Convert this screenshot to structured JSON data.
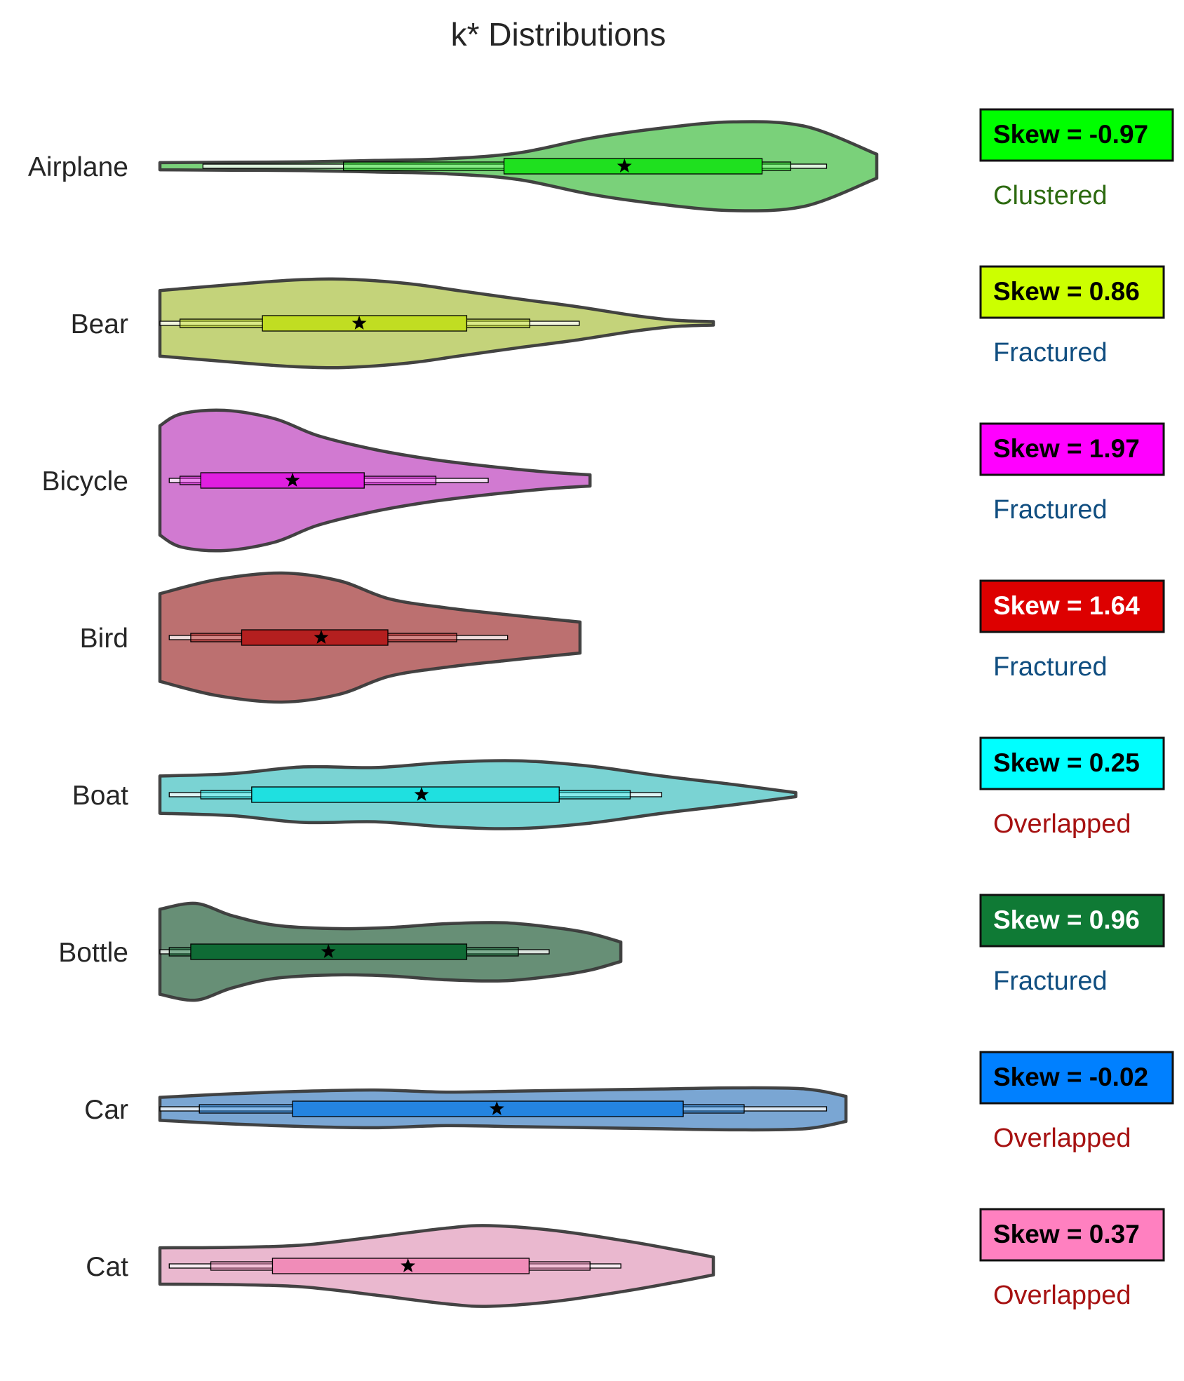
{
  "chart_data": {
    "type": "violin",
    "title": "k* Distributions",
    "xlabel": "",
    "ylabel": "",
    "grid": false,
    "legend": "none",
    "categories": [
      "Airplane",
      "Bear",
      "Bicycle",
      "Bird",
      "Boat",
      "Bottle",
      "Car",
      "Cat"
    ],
    "series": [
      {
        "category": "Airplane",
        "color": "#1fe01f",
        "violin_color": "#7ad17a",
        "range": [
          0,
          1.0
        ],
        "half_width": 0.55,
        "density": [
          [
            0,
            0.08
          ],
          [
            0.1,
            0.09
          ],
          [
            0.2,
            0.1
          ],
          [
            0.3,
            0.13
          ],
          [
            0.4,
            0.17
          ],
          [
            0.5,
            0.3
          ],
          [
            0.6,
            0.63
          ],
          [
            0.7,
            0.86
          ],
          [
            0.8,
            1.0
          ],
          [
            0.9,
            0.9
          ],
          [
            1.0,
            0.27
          ]
        ],
        "whisker": [
          0.06,
          0.93
        ],
        "box": [
          0.48,
          0.84
        ],
        "inner": [
          0.256,
          0.88
        ],
        "mean": 0.648,
        "skew_label": "Skew = -0.97",
        "skew_bg": "#00ff00",
        "skew_text_color": "#000000",
        "classification": "Clustered",
        "class_color": "#2d6a10"
      },
      {
        "category": "Bear",
        "color": "#c1dd22",
        "violin_color": "#c4d37a",
        "range": [
          0,
          0.772
        ],
        "half_width": 0.55,
        "density": [
          [
            0,
            0.74
          ],
          [
            0.06,
            0.82
          ],
          [
            0.12,
            0.9
          ],
          [
            0.18,
            0.97
          ],
          [
            0.24,
            1.0
          ],
          [
            0.3,
            0.96
          ],
          [
            0.36,
            0.87
          ],
          [
            0.42,
            0.73
          ],
          [
            0.5,
            0.55
          ],
          [
            0.58,
            0.38
          ],
          [
            0.66,
            0.18
          ],
          [
            0.72,
            0.07
          ],
          [
            0.772,
            0.04
          ]
        ],
        "whisker": [
          0,
          0.585
        ],
        "box": [
          0.143,
          0.428
        ],
        "inner": [
          0.028,
          0.516
        ],
        "mean": 0.278,
        "skew_label": "Skew = 0.86",
        "skew_bg": "#ccff00",
        "skew_text_color": "#000000",
        "classification": "Fractured",
        "class_color": "#104e80"
      },
      {
        "category": "Bicycle",
        "color": "#e01fe0",
        "violin_color": "#d17ad1",
        "range": [
          0,
          0.6
        ],
        "half_width": 0.87,
        "density": [
          [
            0,
            0.78
          ],
          [
            0.03,
            0.95
          ],
          [
            0.09,
            1.0
          ],
          [
            0.16,
            0.88
          ],
          [
            0.22,
            0.64
          ],
          [
            0.3,
            0.44
          ],
          [
            0.38,
            0.3
          ],
          [
            0.46,
            0.2
          ],
          [
            0.54,
            0.12
          ],
          [
            0.6,
            0.08
          ]
        ],
        "whisker": [
          0.013,
          0.458
        ],
        "box": [
          0.057,
          0.285
        ],
        "inner": [
          0.028,
          0.385
        ],
        "mean": 0.185,
        "skew_label": "Skew = 1.97",
        "skew_bg": "#ff00ff",
        "skew_text_color": "#000000",
        "classification": "Fractured",
        "class_color": "#104e80"
      },
      {
        "category": "Bird",
        "color": "#b41f1f",
        "violin_color": "#bc7070",
        "range": [
          0,
          0.586
        ],
        "half_width": 0.8,
        "density": [
          [
            0,
            0.68
          ],
          [
            0.08,
            0.9
          ],
          [
            0.17,
            1.0
          ],
          [
            0.25,
            0.88
          ],
          [
            0.32,
            0.6
          ],
          [
            0.4,
            0.46
          ],
          [
            0.48,
            0.36
          ],
          [
            0.55,
            0.28
          ],
          [
            0.586,
            0.24
          ]
        ],
        "whisker": [
          0.013,
          0.485
        ],
        "box": [
          0.114,
          0.318
        ],
        "inner": [
          0.043,
          0.414
        ],
        "mean": 0.225,
        "skew_label": "Skew = 1.64",
        "skew_bg": "#dd0000",
        "skew_text_color": "#ffffff",
        "classification": "Fractured",
        "class_color": "#104e80"
      },
      {
        "category": "Boat",
        "color": "#1fe0e0",
        "violin_color": "#7ad3d3",
        "range": [
          0,
          0.887
        ],
        "half_width": 0.42,
        "density": [
          [
            0,
            0.55
          ],
          [
            0.1,
            0.62
          ],
          [
            0.2,
            0.82
          ],
          [
            0.3,
            0.8
          ],
          [
            0.4,
            0.95
          ],
          [
            0.5,
            1.0
          ],
          [
            0.6,
            0.84
          ],
          [
            0.7,
            0.55
          ],
          [
            0.8,
            0.3
          ],
          [
            0.887,
            0.06
          ]
        ],
        "whisker": [
          0.013,
          0.7
        ],
        "box": [
          0.128,
          0.557
        ],
        "inner": [
          0.057,
          0.656
        ],
        "mean": 0.365,
        "skew_label": "Skew = 0.25",
        "skew_bg": "#00ffff",
        "skew_text_color": "#000000",
        "classification": "Overlapped",
        "class_color": "#a61111"
      },
      {
        "category": "Bottle",
        "color": "#0f6b35",
        "violin_color": "#678f76",
        "range": [
          0,
          0.643
        ],
        "half_width": 0.6,
        "density": [
          [
            0,
            0.88
          ],
          [
            0.05,
            1.0
          ],
          [
            0.1,
            0.75
          ],
          [
            0.16,
            0.55
          ],
          [
            0.24,
            0.48
          ],
          [
            0.32,
            0.5
          ],
          [
            0.4,
            0.58
          ],
          [
            0.48,
            0.6
          ],
          [
            0.55,
            0.5
          ],
          [
            0.6,
            0.38
          ],
          [
            0.643,
            0.2
          ]
        ],
        "whisker": [
          0,
          0.543
        ],
        "box": [
          0.043,
          0.428
        ],
        "inner": [
          0.013,
          0.5
        ],
        "mean": 0.235,
        "skew_label": "Skew = 0.96",
        "skew_bg": "#0f7a35",
        "skew_text_color": "#ffffff",
        "classification": "Fractured",
        "class_color": "#104e80"
      },
      {
        "category": "Car",
        "color": "#2484e0",
        "violin_color": "#7aa6d3",
        "range": [
          0,
          0.957
        ],
        "half_width": 0.26,
        "density": [
          [
            0,
            0.55
          ],
          [
            0.1,
            0.72
          ],
          [
            0.2,
            0.84
          ],
          [
            0.3,
            0.9
          ],
          [
            0.4,
            0.8
          ],
          [
            0.5,
            0.85
          ],
          [
            0.6,
            0.9
          ],
          [
            0.7,
            0.95
          ],
          [
            0.8,
            1.0
          ],
          [
            0.9,
            0.95
          ],
          [
            0.957,
            0.6
          ]
        ],
        "whisker": [
          0,
          0.93
        ],
        "box": [
          0.185,
          0.73
        ],
        "inner": [
          0.055,
          0.815
        ],
        "mean": 0.47,
        "skew_label": "Skew = -0.02",
        "skew_bg": "#0080ff",
        "skew_text_color": "#000000",
        "classification": "Overlapped",
        "class_color": "#a61111"
      },
      {
        "category": "Cat",
        "color": "#f08cb8",
        "violin_color": "#eab8cf",
        "range": [
          0,
          0.772
        ],
        "half_width": 0.5,
        "density": [
          [
            0,
            0.45
          ],
          [
            0.1,
            0.46
          ],
          [
            0.2,
            0.52
          ],
          [
            0.3,
            0.72
          ],
          [
            0.4,
            0.94
          ],
          [
            0.46,
            1.0
          ],
          [
            0.55,
            0.88
          ],
          [
            0.65,
            0.62
          ],
          [
            0.72,
            0.4
          ],
          [
            0.772,
            0.22
          ]
        ],
        "whisker": [
          0.013,
          0.643
        ],
        "box": [
          0.157,
          0.515
        ],
        "inner": [
          0.071,
          0.6
        ],
        "mean": 0.346,
        "skew_label": "Skew = 0.37",
        "skew_bg": "#ff80c0",
        "skew_text_color": "#000000",
        "classification": "Overlapped",
        "class_color": "#a61111"
      }
    ]
  }
}
